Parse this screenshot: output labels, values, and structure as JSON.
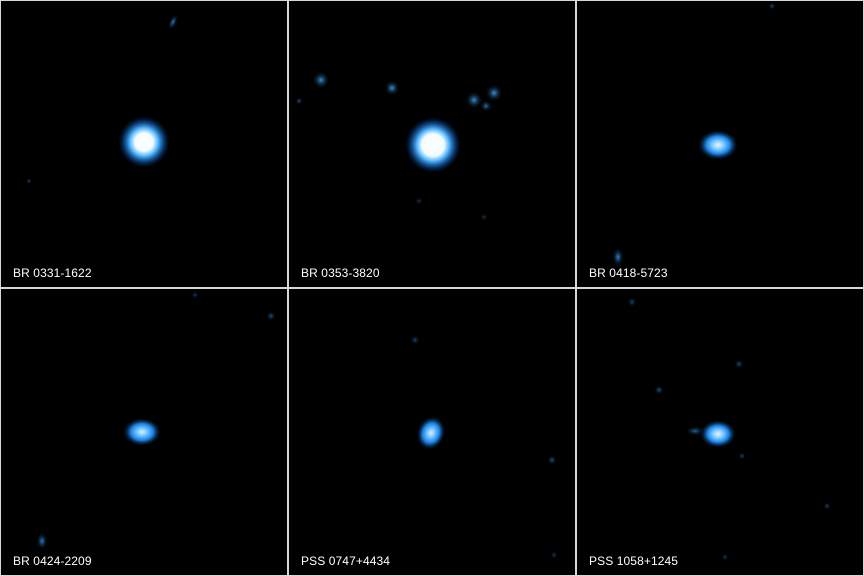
{
  "panels": [
    {
      "label": "BR 0331-1622"
    },
    {
      "label": "BR 0353-3820"
    },
    {
      "label": "BR 0418-5723"
    },
    {
      "label": "BR 0424-2209"
    },
    {
      "label": "PSS 0747+4434"
    },
    {
      "label": "PSS 1058+1245"
    }
  ],
  "colors": {
    "background": "#000000",
    "source_core": "#ffffff",
    "source_glow": "#1e90ff",
    "divider": "#d8d8d8"
  }
}
